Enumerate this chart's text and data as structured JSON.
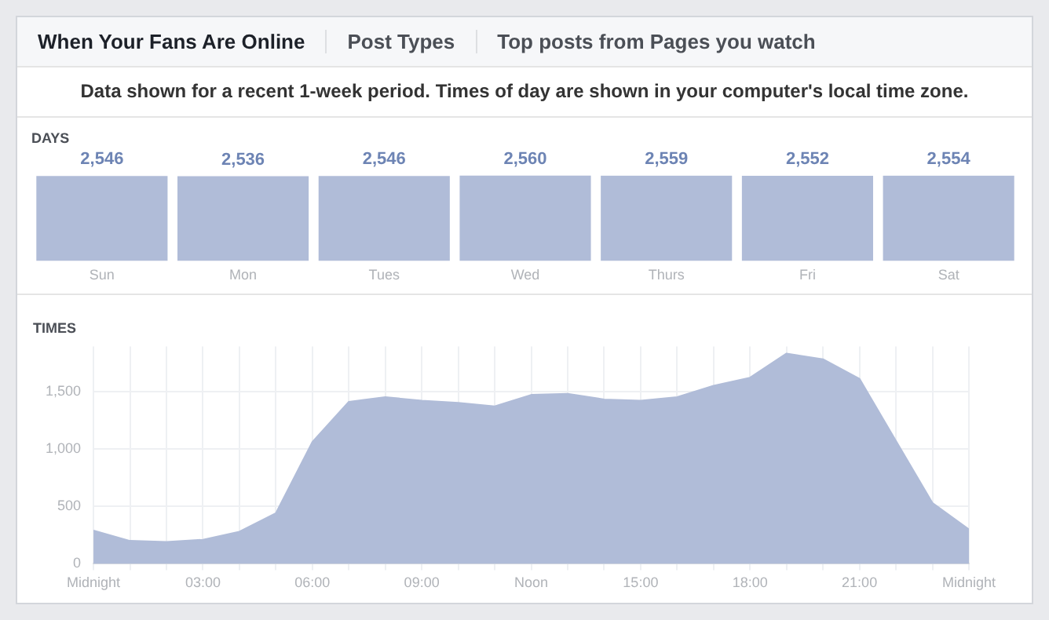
{
  "chart_data": [
    {
      "type": "bar",
      "title": "DAYS",
      "annotations": [
        "When Your Fans Are Online",
        "Post Types",
        "Top posts from Pages you watch",
        "Data shown for a recent 1-week period. Times of day are shown in your computer's local time zone."
      ],
      "categories": [
        "Sun",
        "Mon",
        "Tues",
        "Wed",
        "Thurs",
        "Fri",
        "Sat"
      ],
      "values": [
        2546,
        2536,
        2546,
        2560,
        2559,
        2552,
        2554
      ],
      "value_labels": [
        "2,546",
        "2,536",
        "2,546",
        "2,560",
        "2,559",
        "2,552",
        "2,554"
      ],
      "color": "#b0bcd8",
      "tick_labels": "x",
      "grid": false,
      "legend": false
    },
    {
      "type": "area",
      "title": "TIMES",
      "x": [
        0,
        1,
        2,
        3,
        4,
        5,
        6,
        7,
        8,
        9,
        10,
        11,
        12,
        13,
        14,
        15,
        16,
        17,
        18,
        19,
        20,
        21,
        22,
        23,
        24
      ],
      "values": [
        290,
        200,
        190,
        210,
        280,
        440,
        1060,
        1410,
        1450,
        1420,
        1400,
        1370,
        1470,
        1480,
        1430,
        1420,
        1450,
        1550,
        1620,
        1830,
        1780,
        1610,
        1070,
        530,
        300
      ],
      "color": "#b0bcd8",
      "xlim": [
        0,
        24
      ],
      "xticks": [
        {
          "value": 0,
          "label": "Midnight"
        },
        {
          "value": 1,
          "label": null
        },
        {
          "value": 2,
          "label": null
        },
        {
          "value": 3,
          "label": "03:00"
        },
        {
          "value": 4,
          "label": null
        },
        {
          "value": 5,
          "label": null
        },
        {
          "value": 6,
          "label": "06:00"
        },
        {
          "value": 7,
          "label": null
        },
        {
          "value": 8,
          "label": null
        },
        {
          "value": 9,
          "label": "09:00"
        },
        {
          "value": 10,
          "label": null
        },
        {
          "value": 11,
          "label": null
        },
        {
          "value": 12,
          "label": "Noon"
        },
        {
          "value": 13,
          "label": null
        },
        {
          "value": 14,
          "label": null
        },
        {
          "value": 15,
          "label": "15:00"
        },
        {
          "value": 16,
          "label": null
        },
        {
          "value": 17,
          "label": null
        },
        {
          "value": 18,
          "label": "18:00"
        },
        {
          "value": 19,
          "label": null
        },
        {
          "value": 20,
          "label": null
        },
        {
          "value": 21,
          "label": "21:00"
        },
        {
          "value": 22,
          "label": null
        },
        {
          "value": 23,
          "label": null
        },
        {
          "value": 24,
          "label": "Midnight"
        }
      ],
      "ylim": [
        0,
        1890
      ],
      "yticks": [
        0,
        {
          "value": 500,
          "label": "500"
        },
        {
          "value": 1000,
          "label": "1,000"
        },
        {
          "value": 1500,
          "label": "1,500"
        }
      ],
      "grid": true,
      "legend": false,
      "marker": "none"
    }
  ]
}
